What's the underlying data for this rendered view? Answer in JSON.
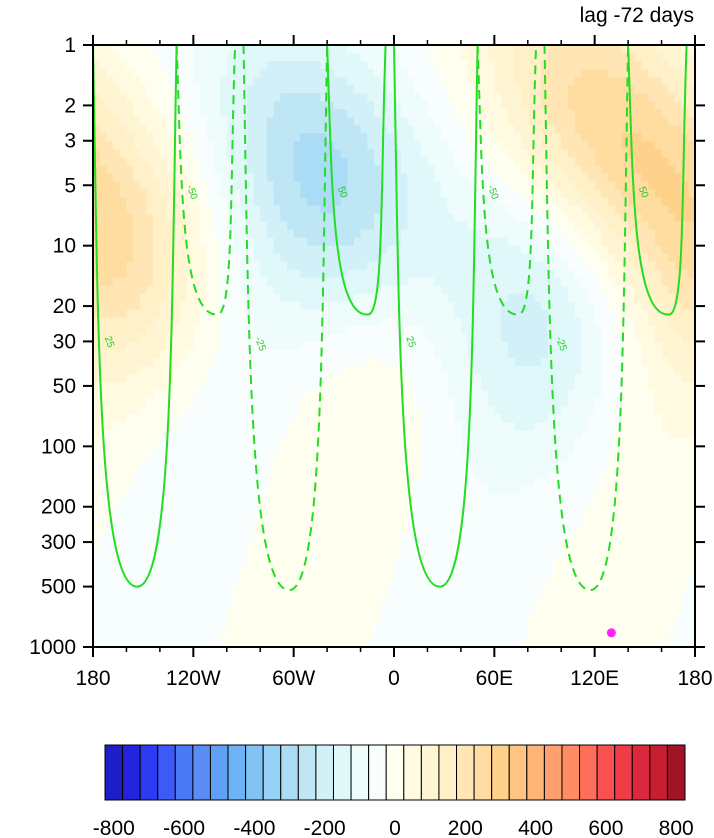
{
  "chart_data": {
    "type": "heatmap",
    "title": "",
    "subtitle": "lag -72 days",
    "xlabel": "",
    "ylabel": "",
    "x_ticks": [
      {
        "value": -180,
        "label": "180"
      },
      {
        "value": -120,
        "label": "120W"
      },
      {
        "value": -60,
        "label": "60W"
      },
      {
        "value": 0,
        "label": "0"
      },
      {
        "value": 60,
        "label": "60E"
      },
      {
        "value": 120,
        "label": "120E"
      },
      {
        "value": 180,
        "label": "180"
      }
    ],
    "xlim": [
      -180,
      180
    ],
    "y_scale": "log",
    "y_inverted": true,
    "ylim": [
      1000,
      1
    ],
    "y_ticks": [
      {
        "value": 1,
        "label": "1"
      },
      {
        "value": 2,
        "label": "2"
      },
      {
        "value": 3,
        "label": "3"
      },
      {
        "value": 5,
        "label": "5"
      },
      {
        "value": 10,
        "label": "10"
      },
      {
        "value": 20,
        "label": "20"
      },
      {
        "value": 30,
        "label": "30"
      },
      {
        "value": 50,
        "label": "50"
      },
      {
        "value": 100,
        "label": "100"
      },
      {
        "value": 200,
        "label": "200"
      },
      {
        "value": 300,
        "label": "300"
      },
      {
        "value": 500,
        "label": "500"
      },
      {
        "value": 1000,
        "label": "1000"
      }
    ],
    "fill_field": {
      "levels": [
        -800,
        -750,
        -700,
        -650,
        -600,
        -550,
        -500,
        -450,
        -400,
        -350,
        -300,
        -250,
        -200,
        -150,
        -100,
        -50,
        0,
        50,
        100,
        150,
        200,
        250,
        300,
        350,
        400,
        450,
        500,
        550,
        600,
        650,
        700,
        750,
        800
      ],
      "colorbar_labels": [
        {
          "value": -800,
          "label": "-800"
        },
        {
          "value": -600,
          "label": "-600"
        },
        {
          "value": -400,
          "label": "-400"
        },
        {
          "value": -200,
          "label": "-200"
        },
        {
          "value": 0,
          "label": "0"
        },
        {
          "value": 200,
          "label": "200"
        },
        {
          "value": 400,
          "label": "400"
        },
        {
          "value": 600,
          "label": "600"
        },
        {
          "value": 800,
          "label": "800"
        }
      ],
      "colors": [
        "#1e1ec8",
        "#2323e0",
        "#2b3cf0",
        "#3c5af5",
        "#4b78f5",
        "#5a8cf5",
        "#5fa0f5",
        "#6eb4f5",
        "#82c3f5",
        "#96d2f5",
        "#aadcf5",
        "#bee6f5",
        "#d2f0f8",
        "#e1f8fa",
        "#eefcfc",
        "#f8fefe",
        "#fffff0",
        "#fffae0",
        "#fff5d2",
        "#fff0c8",
        "#ffe6b4",
        "#ffdca0",
        "#ffd28c",
        "#ffc382",
        "#ffb478",
        "#ffa06e",
        "#ff8c64",
        "#ff6e5a",
        "#fa5050",
        "#f03c46",
        "#dc283c",
        "#c81e32",
        "#a01428"
      ],
      "anomalies": [
        {
          "lon": -30,
          "p": 4,
          "peak": -230
        },
        {
          "lon": 150,
          "p": 2.5,
          "peak": 250
        },
        {
          "lon": -170,
          "p": 8,
          "peak": 150
        },
        {
          "lon": 60,
          "p": 15,
          "peak": -120
        }
      ]
    },
    "contours": {
      "color": "#22dd22",
      "negative_style": "dashed",
      "lines": [
        {
          "value": 25,
          "label": "25",
          "bottom_p": 500,
          "bottom_lon": -153,
          "left_top_lon": -180,
          "right_top_lon": -130
        },
        {
          "value": -25,
          "label": "-25",
          "bottom_p": 520,
          "bottom_lon": -62,
          "left_top_lon": -90,
          "right_top_lon": -40
        },
        {
          "value": 25,
          "label": "25",
          "bottom_p": 500,
          "bottom_lon": 28,
          "left_top_lon": 0,
          "right_top_lon": 50
        },
        {
          "value": -25,
          "label": "-25",
          "bottom_p": 520,
          "bottom_lon": 118,
          "left_top_lon": 90,
          "right_top_lon": 140
        },
        {
          "value": -50,
          "label": "-50",
          "bottom_p": 22,
          "bottom_lon": -105,
          "left_top_lon": -130,
          "right_top_lon": -95
        },
        {
          "value": 50,
          "label": "50",
          "bottom_p": 22,
          "bottom_lon": -15,
          "left_top_lon": -40,
          "right_top_lon": -5
        },
        {
          "value": -50,
          "label": "-50",
          "bottom_p": 22,
          "bottom_lon": 75,
          "left_top_lon": 50,
          "right_top_lon": 85
        },
        {
          "value": 50,
          "label": "50",
          "bottom_p": 22,
          "bottom_lon": 165,
          "left_top_lon": 140,
          "right_top_lon": 175
        }
      ]
    },
    "marker": {
      "lon": 130,
      "p": 850,
      "color": "#ff22ff"
    }
  }
}
